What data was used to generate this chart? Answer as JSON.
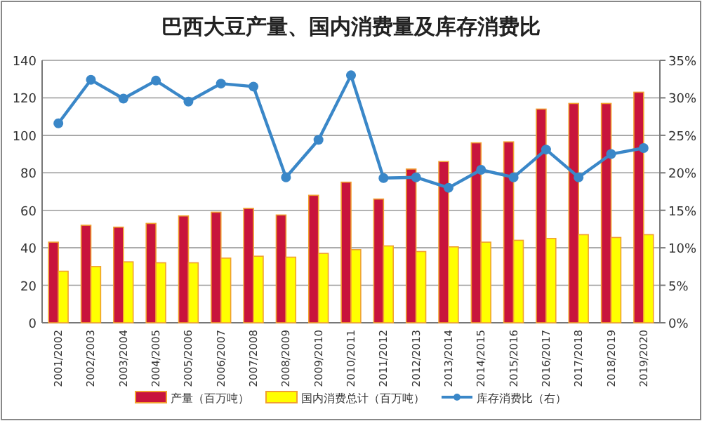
{
  "chart_data": {
    "type": "bar",
    "title": "巴西大豆产量、国内消费量及库存消费比",
    "categories": [
      "2001/2002",
      "2002/2003",
      "2003/2004",
      "2004/2005",
      "2005/2006",
      "2006/2007",
      "2007/2008",
      "2008/2009",
      "2009/2010",
      "2010/2011",
      "2011/2012",
      "2012/2013",
      "2013/2014",
      "2014/2015",
      "2015/2016",
      "2016/2017",
      "2017/2018",
      "2018/2019",
      "2019/2020"
    ],
    "series": [
      {
        "name": "产量（百万吨）",
        "color": "#c8143c",
        "values": [
          43,
          52,
          51,
          53,
          57,
          59,
          61,
          57.5,
          68,
          75,
          66,
          82,
          86,
          96,
          96.5,
          114,
          117,
          117,
          123
        ]
      },
      {
        "name": "国内消费总计（百万吨）",
        "color": "#ffff00",
        "values": [
          27.5,
          30,
          32.5,
          32,
          32,
          34.5,
          35.5,
          35,
          37,
          39,
          41,
          38,
          40.5,
          43,
          44,
          45,
          47,
          45.5,
          47
        ]
      },
      {
        "name": "库存消费比（右）",
        "type": "line",
        "axis": "y2",
        "color": "#3a87c8",
        "values": [
          26.6,
          32.4,
          29.9,
          32.3,
          29.5,
          31.9,
          31.5,
          19.4,
          24.4,
          33,
          19.3,
          19.4,
          18,
          20.4,
          19.4,
          23.1,
          19.4,
          22.5,
          23.3
        ]
      }
    ],
    "ylim": [
      0,
      140
    ],
    "yticks": [
      0,
      20,
      40,
      60,
      80,
      100,
      120,
      140
    ],
    "y2lim": [
      0,
      35
    ],
    "y2ticks": [
      {
        "value": 0,
        "label": "0%"
      },
      {
        "value": 5,
        "label": "5%"
      },
      {
        "value": 10,
        "label": "10%"
      },
      {
        "value": 15,
        "label": "15%"
      },
      {
        "value": 20,
        "label": "20%"
      },
      {
        "value": 25,
        "label": "25%"
      },
      {
        "value": 30,
        "label": "30%"
      },
      {
        "value": 35,
        "label": "35%"
      }
    ],
    "grid": "y",
    "legend": "bottom",
    "marker": "circle"
  }
}
